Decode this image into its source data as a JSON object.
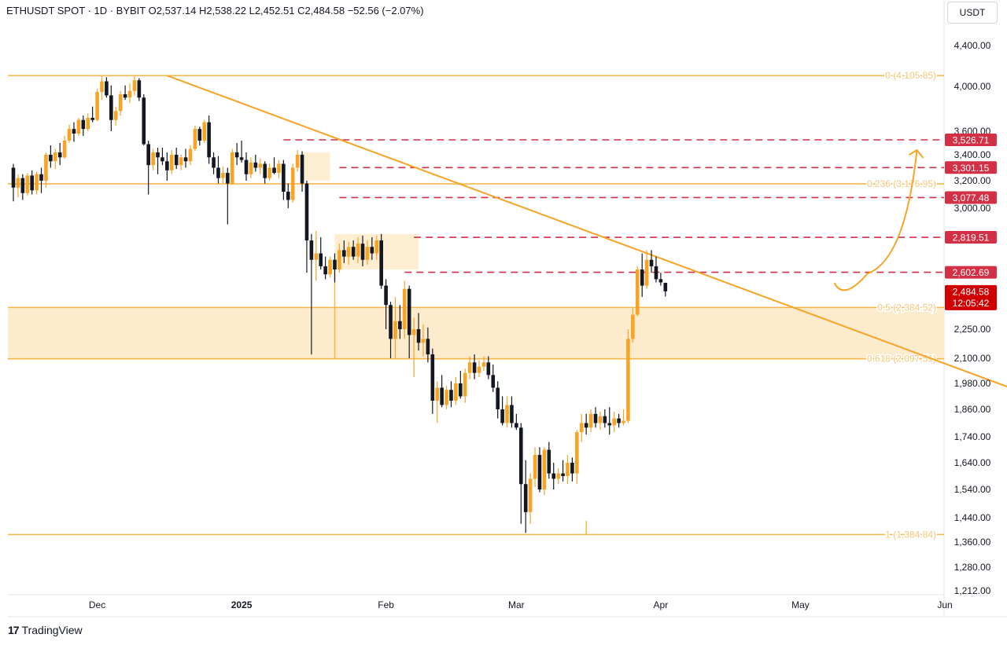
{
  "header": {
    "symbol": "ETHUSDT SPOT · 1D · BYBIT",
    "o_label": "O",
    "o_value": "2,537.14",
    "h_label": "H",
    "h_value": "2,538.22",
    "l_label": "L",
    "l_value": "2,452.51",
    "c_label": "C",
    "c_value": "2,484.58",
    "change": "−52.56 (−2.07%)"
  },
  "unit_button": "USDT",
  "brand": {
    "logo": "17",
    "name": "TradingView"
  },
  "colors": {
    "up": "#f7a325",
    "down": "#131722",
    "fib": "#f7b54a",
    "fib_text": "#f7c77a",
    "resistance": "#d32f45",
    "zone_fill": "#fde8c6",
    "trend": "#f7a325"
  },
  "chart_data": {
    "type": "candlestick",
    "ylim": [
      1212,
      4600
    ],
    "price_ticks": [
      "4,400.00",
      "4,000.00",
      "3,600.00",
      "3,400.00",
      "3,200.00",
      "3,000.00",
      "2,250.00",
      "2,100.00",
      "1,980.00",
      "1,860.00",
      "1,740.00",
      "1,640.00",
      "1,540.00",
      "1,440.00",
      "1,360.00",
      "1,280.00",
      "1,212.00"
    ],
    "price_tick_values": [
      4400,
      4000,
      3600,
      3400,
      3200,
      3000,
      2250,
      2100,
      1980,
      1860,
      1740,
      1640,
      1540,
      1440,
      1360,
      1280,
      1212
    ],
    "time_labels": [
      "Dec",
      "2025",
      "Feb",
      "Mar",
      "Apr",
      "May",
      "Jun"
    ],
    "time_label_dates": [
      "2024-12-01",
      "2025-01-01",
      "2025-02-01",
      "2025-03-01",
      "2025-04-01",
      "2025-05-01",
      "2025-06-01"
    ],
    "first_date": "2024-11-13",
    "fib_levels": [
      {
        "label": "0 (4,105.85)",
        "value": 4105.85
      },
      {
        "label": "0.236 (3,176.95)",
        "value": 3176.95
      },
      {
        "label": "0.5 (2,384.52)",
        "value": 2384.52
      },
      {
        "label": "0.618 (2,097.51)",
        "value": 2097.51
      },
      {
        "label": "1 (1,384.84)",
        "value": 1384.84
      }
    ],
    "resistance_levels": [
      {
        "label": "3,526.71",
        "value": 3526.71
      },
      {
        "label": "3,301.15",
        "value": 3301.15
      },
      {
        "label": "3,077.48",
        "value": 3077.48
      },
      {
        "label": "2,819.51",
        "value": 2819.51
      },
      {
        "label": "2,602.69",
        "value": 2602.69
      }
    ],
    "last_price": {
      "label": "2,484.58",
      "countdown": "12:05:42",
      "value": 2484.58
    },
    "zone": {
      "top": 2384.52,
      "bottom": 2097.51
    },
    "trendline": {
      "from": [
        "2024-12-16",
        4105.85
      ],
      "to": [
        "2025-06-20",
        1920
      ]
    },
    "projection": {
      "from": [
        "2025-05-12",
        2390
      ],
      "to": [
        "2025-05-26",
        3440
      ]
    },
    "candles": [
      [
        3300,
        3330,
        3050,
        3150
      ],
      [
        3150,
        3250,
        3080,
        3220
      ],
      [
        3220,
        3250,
        3060,
        3110
      ],
      [
        3110,
        3260,
        3090,
        3240
      ],
      [
        3240,
        3280,
        3100,
        3130
      ],
      [
        3130,
        3270,
        3100,
        3250
      ],
      [
        3250,
        3300,
        3110,
        3200
      ],
      [
        3200,
        3420,
        3150,
        3400
      ],
      [
        3400,
        3480,
        3300,
        3350
      ],
      [
        3350,
        3450,
        3290,
        3420
      ],
      [
        3420,
        3500,
        3320,
        3380
      ],
      [
        3380,
        3560,
        3370,
        3520
      ],
      [
        3520,
        3660,
        3500,
        3620
      ],
      [
        3620,
        3680,
        3510,
        3580
      ],
      [
        3580,
        3720,
        3560,
        3700
      ],
      [
        3700,
        3740,
        3560,
        3620
      ],
      [
        3620,
        3760,
        3600,
        3720
      ],
      [
        3720,
        3820,
        3680,
        3700
      ],
      [
        3700,
        3980,
        3690,
        3950
      ],
      [
        3950,
        4100,
        3880,
        4050
      ],
      [
        4050,
        4090,
        3900,
        3920
      ],
      [
        3920,
        4010,
        3600,
        3700
      ],
      [
        3700,
        3820,
        3650,
        3780
      ],
      [
        3780,
        3960,
        3740,
        3930
      ],
      [
        3930,
        4010,
        3880,
        3900
      ],
      [
        3900,
        4030,
        3850,
        3960
      ],
      [
        3960,
        4105,
        3920,
        4060
      ],
      [
        4060,
        4080,
        3870,
        3900
      ],
      [
        3900,
        3930,
        3480,
        3490
      ],
      [
        3490,
        3520,
        3100,
        3320
      ],
      [
        3320,
        3450,
        3280,
        3420
      ],
      [
        3420,
        3460,
        3250,
        3380
      ],
      [
        3380,
        3460,
        3320,
        3350
      ],
      [
        3350,
        3420,
        3200,
        3280
      ],
      [
        3280,
        3440,
        3250,
        3400
      ],
      [
        3400,
        3460,
        3290,
        3320
      ],
      [
        3320,
        3400,
        3280,
        3380
      ],
      [
        3380,
        3450,
        3300,
        3350
      ],
      [
        3350,
        3480,
        3320,
        3450
      ],
      [
        3450,
        3650,
        3430,
        3620
      ],
      [
        3620,
        3640,
        3480,
        3520
      ],
      [
        3520,
        3700,
        3500,
        3680
      ],
      [
        3680,
        3740,
        3330,
        3380
      ],
      [
        3380,
        3420,
        3250,
        3300
      ],
      [
        3300,
        3390,
        3180,
        3220
      ],
      [
        3220,
        3310,
        3180,
        3260
      ],
      [
        3260,
        3300,
        2900,
        3180
      ],
      [
        3180,
        3450,
        3170,
        3420
      ],
      [
        3420,
        3500,
        3320,
        3380
      ],
      [
        3380,
        3520,
        3340,
        3360
      ],
      [
        3360,
        3420,
        3200,
        3250
      ],
      [
        3250,
        3380,
        3220,
        3340
      ],
      [
        3340,
        3400,
        3270,
        3300
      ],
      [
        3300,
        3370,
        3250,
        3330
      ],
      [
        3330,
        3350,
        3180,
        3220
      ],
      [
        3220,
        3330,
        3200,
        3300
      ],
      [
        3300,
        3380,
        3250,
        3260
      ],
      [
        3260,
        3360,
        3220,
        3330
      ],
      [
        3330,
        3360,
        3060,
        3120
      ],
      [
        3120,
        3180,
        3000,
        3060
      ],
      [
        3060,
        3330,
        3040,
        3300
      ],
      [
        3300,
        3440,
        3270,
        3400
      ],
      [
        3400,
        3430,
        3120,
        3180
      ],
      [
        3180,
        3200,
        2600,
        2800
      ],
      [
        2800,
        2840,
        2120,
        2680
      ],
      [
        2680,
        2860,
        2550,
        2720
      ],
      [
        2720,
        2820,
        2620,
        2640
      ],
      [
        2640,
        2700,
        2560,
        2590
      ],
      [
        2590,
        2700,
        2570,
        2680
      ],
      [
        2680,
        2720,
        2540,
        2620
      ],
      [
        2620,
        2780,
        2600,
        2740
      ],
      [
        2740,
        2800,
        2660,
        2700
      ],
      [
        2700,
        2790,
        2650,
        2760
      ],
      [
        2760,
        2800,
        2680,
        2700
      ],
      [
        2700,
        2820,
        2660,
        2780
      ],
      [
        2780,
        2830,
        2640,
        2680
      ],
      [
        2680,
        2800,
        2650,
        2760
      ],
      [
        2760,
        2820,
        2680,
        2720
      ],
      [
        2720,
        2830,
        2680,
        2800
      ],
      [
        2800,
        2840,
        2500,
        2520
      ],
      [
        2520,
        2560,
        2250,
        2400
      ],
      [
        2400,
        2420,
        2100,
        2200
      ],
      [
        2200,
        2450,
        2100,
        2300
      ],
      [
        2300,
        2400,
        2200,
        2250
      ],
      [
        2250,
        2550,
        2200,
        2500
      ],
      [
        2500,
        2520,
        2100,
        2220
      ],
      [
        2220,
        2320,
        2010,
        2250
      ],
      [
        2250,
        2350,
        2140,
        2180
      ],
      [
        2180,
        2280,
        2110,
        2200
      ],
      [
        2200,
        2260,
        2080,
        2120
      ],
      [
        2120,
        2150,
        1840,
        1900
      ],
      [
        1900,
        1990,
        1800,
        1960
      ],
      [
        1960,
        2020,
        1870,
        1880
      ],
      [
        1880,
        1970,
        1860,
        1950
      ],
      [
        1950,
        1990,
        1870,
        1900
      ],
      [
        1900,
        2010,
        1880,
        1980
      ],
      [
        1980,
        2040,
        1910,
        1920
      ],
      [
        1920,
        2050,
        1890,
        2030
      ],
      [
        2030,
        2110,
        2000,
        2080
      ],
      [
        2080,
        2120,
        2000,
        2030
      ],
      [
        2030,
        2090,
        2010,
        2060
      ],
      [
        2060,
        2110,
        2040,
        2080
      ],
      [
        2080,
        2110,
        2000,
        2020
      ],
      [
        2020,
        2070,
        1940,
        1960
      ],
      [
        1960,
        1990,
        1820,
        1860
      ],
      [
        1860,
        1920,
        1790,
        1800
      ],
      [
        1800,
        1920,
        1780,
        1880
      ],
      [
        1880,
        1920,
        1780,
        1800
      ],
      [
        1800,
        1840,
        1770,
        1780
      ],
      [
        1780,
        1800,
        1420,
        1560
      ],
      [
        1560,
        1650,
        1390,
        1460
      ],
      [
        1460,
        1600,
        1420,
        1580
      ],
      [
        1580,
        1700,
        1550,
        1670
      ],
      [
        1670,
        1700,
        1530,
        1540
      ],
      [
        1540,
        1700,
        1520,
        1690
      ],
      [
        1690,
        1720,
        1580,
        1600
      ],
      [
        1600,
        1640,
        1540,
        1580
      ],
      [
        1580,
        1620,
        1560,
        1600
      ],
      [
        1600,
        1650,
        1570,
        1590
      ],
      [
        1590,
        1670,
        1560,
        1640
      ],
      [
        1640,
        1660,
        1570,
        1600
      ],
      [
        1600,
        1770,
        1560,
        1760
      ],
      [
        1760,
        1840,
        1720,
        1800
      ],
      [
        1800,
        1840,
        1750,
        1780
      ],
      [
        1780,
        1860,
        1760,
        1840
      ],
      [
        1840,
        1870,
        1780,
        1800
      ],
      [
        1800,
        1850,
        1770,
        1830
      ],
      [
        1830,
        1860,
        1780,
        1800
      ],
      [
        1800,
        1870,
        1750,
        1790
      ],
      [
        1790,
        1850,
        1760,
        1820
      ],
      [
        1820,
        1840,
        1780,
        1800
      ],
      [
        1800,
        1860,
        1790,
        1810
      ],
      [
        1810,
        2250,
        1800,
        2200
      ],
      [
        2200,
        2380,
        2180,
        2340
      ],
      [
        2340,
        2640,
        2330,
        2620
      ],
      [
        2620,
        2720,
        2450,
        2520
      ],
      [
        2520,
        2740,
        2500,
        2680
      ],
      [
        2680,
        2740,
        2600,
        2640
      ],
      [
        2640,
        2700,
        2540,
        2560
      ],
      [
        2560,
        2600,
        2520,
        2540
      ],
      [
        2537.14,
        2538.22,
        2452.51,
        2484.58
      ]
    ]
  }
}
